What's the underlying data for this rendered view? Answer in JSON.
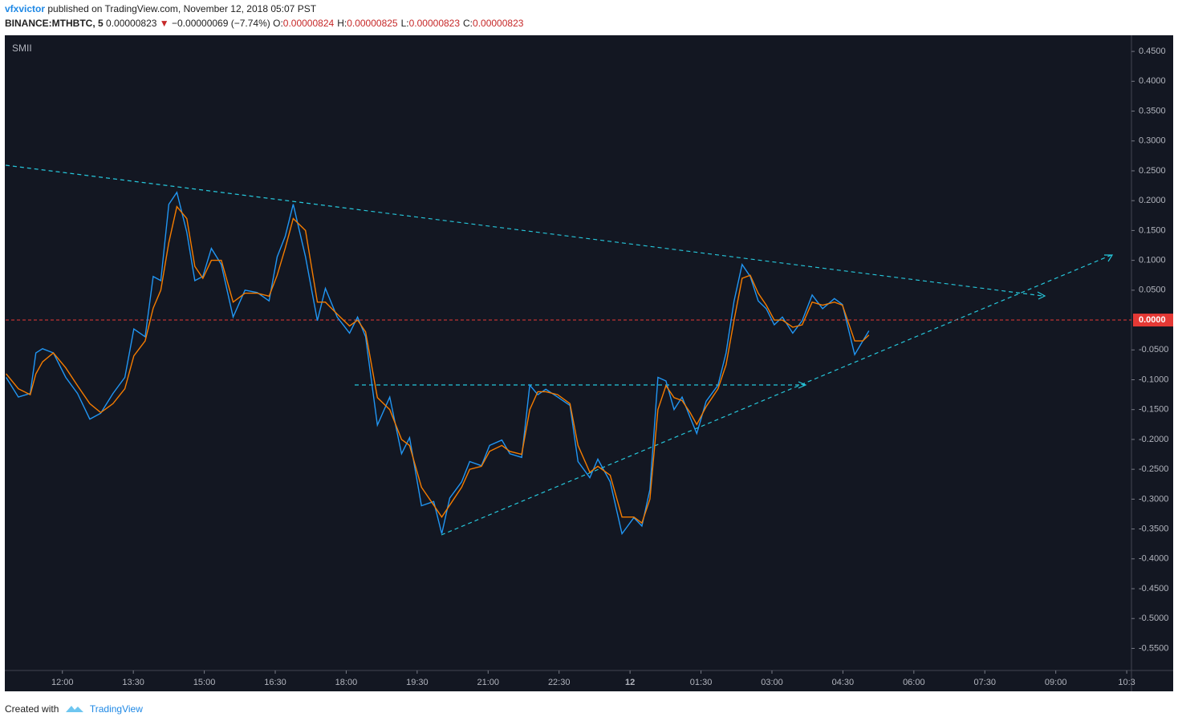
{
  "chart_data": {
    "type": "line",
    "author": "vfxvictor",
    "published": "published on TradingView.com, November 12, 2018 05:07 PST",
    "symbol": "BINANCE:MTHBTC, 5",
    "last": "0.00000823",
    "direction": "▼",
    "change": "−0.00000069 (−7.74%)",
    "ohlc": [
      {
        "label": "O:",
        "value": "0.00000824"
      },
      {
        "label": "H:",
        "value": "0.00000825"
      },
      {
        "label": "L:",
        "value": "0.00000823"
      },
      {
        "label": "C:",
        "value": "0.00000823"
      }
    ],
    "indicator": "SMII",
    "footer": {
      "created": "Created with",
      "brand": "TradingView"
    },
    "x": [
      10.81,
      11.07,
      11.32,
      11.44,
      11.58,
      11.81,
      12.07,
      12.32,
      12.58,
      12.81,
      13.07,
      13.32,
      13.51,
      13.75,
      13.92,
      14.08,
      14.25,
      14.42,
      14.63,
      14.8,
      14.97,
      15.15,
      15.36,
      15.61,
      15.86,
      16.12,
      16.37,
      16.54,
      16.71,
      16.88,
      17.14,
      17.39,
      17.56,
      17.81,
      18.07,
      18.24,
      18.41,
      18.66,
      18.92,
      19.17,
      19.34,
      19.59,
      19.85,
      20.02,
      20.19,
      20.44,
      20.61,
      20.86,
      21.03,
      21.29,
      21.46,
      21.71,
      21.88,
      22.05,
      22.22,
      22.47,
      22.73,
      22.9,
      23.15,
      23.32,
      23.58,
      23.83,
      24.08,
      24.25,
      24.42,
      24.59,
      24.76,
      24.93,
      25.1,
      25.27,
      25.41,
      25.61,
      25.86,
      26.03,
      26.2,
      26.37,
      26.54,
      26.71,
      26.88,
      27.05,
      27.22,
      27.44,
      27.64,
      27.85,
      28.07,
      28.32,
      28.49,
      28.75,
      28.92,
      29.05
    ],
    "series": [
      {
        "name": "SMII",
        "color": "#2196f3",
        "values": [
          -0.096,
          -0.129,
          -0.123,
          -0.055,
          -0.048,
          -0.055,
          -0.096,
          -0.123,
          -0.166,
          -0.156,
          -0.123,
          -0.096,
          -0.015,
          -0.028,
          0.073,
          0.066,
          0.194,
          0.214,
          0.147,
          0.066,
          0.073,
          0.12,
          0.093,
          0.005,
          0.05,
          0.046,
          0.032,
          0.106,
          0.14,
          0.194,
          0.106,
          -0.001,
          0.053,
          0.005,
          -0.022,
          0.005,
          -0.028,
          -0.176,
          -0.129,
          -0.224,
          -0.197,
          -0.311,
          -0.304,
          -0.358,
          -0.298,
          -0.271,
          -0.237,
          -0.244,
          -0.21,
          -0.201,
          -0.224,
          -0.23,
          -0.109,
          -0.125,
          -0.116,
          -0.129,
          -0.143,
          -0.237,
          -0.264,
          -0.233,
          -0.271,
          -0.358,
          -0.331,
          -0.345,
          -0.284,
          -0.096,
          -0.102,
          -0.15,
          -0.129,
          -0.163,
          -0.19,
          -0.136,
          -0.109,
          -0.055,
          0.032,
          0.093,
          0.073,
          0.032,
          0.019,
          -0.008,
          0.005,
          -0.022,
          -0.001,
          0.042,
          0.019,
          0.036,
          0.026,
          -0.058,
          -0.035,
          -0.018
        ]
      },
      {
        "color": "#f57c00",
        "values": [
          -0.09,
          -0.115,
          -0.125,
          -0.09,
          -0.07,
          -0.055,
          -0.08,
          -0.11,
          -0.14,
          -0.155,
          -0.14,
          -0.115,
          -0.06,
          -0.035,
          0.02,
          0.05,
          0.13,
          0.19,
          0.17,
          0.09,
          0.07,
          0.1,
          0.1,
          0.03,
          0.045,
          0.045,
          0.04,
          0.075,
          0.12,
          0.17,
          0.15,
          0.03,
          0.03,
          0.01,
          -0.01,
          0.0,
          -0.02,
          -0.13,
          -0.15,
          -0.2,
          -0.21,
          -0.28,
          -0.31,
          -0.33,
          -0.31,
          -0.28,
          -0.25,
          -0.245,
          -0.22,
          -0.21,
          -0.22,
          -0.225,
          -0.15,
          -0.12,
          -0.12,
          -0.125,
          -0.14,
          -0.21,
          -0.255,
          -0.245,
          -0.26,
          -0.33,
          -0.33,
          -0.34,
          -0.3,
          -0.15,
          -0.11,
          -0.13,
          -0.135,
          -0.155,
          -0.175,
          -0.145,
          -0.115,
          -0.075,
          0.0,
          0.07,
          0.075,
          0.045,
          0.025,
          0.0,
          0.0,
          -0.012,
          -0.008,
          0.03,
          0.025,
          0.03,
          0.025,
          -0.035,
          -0.035,
          -0.025
        ]
      }
    ],
    "xlim": [
      10.8,
      34.6
    ],
    "xticks": [
      {
        "value": 12,
        "label": "12:00"
      },
      {
        "value": 13.5,
        "label": "13:30"
      },
      {
        "value": 15,
        "label": "15:00"
      },
      {
        "value": 16.5,
        "label": "16:30"
      },
      {
        "value": 18,
        "label": "18:00"
      },
      {
        "value": 19.5,
        "label": "19:30"
      },
      {
        "value": 21,
        "label": "21:00"
      },
      {
        "value": 22.5,
        "label": "22:30"
      },
      {
        "value": 24,
        "label": "12"
      },
      {
        "value": 25.5,
        "label": "01:30"
      },
      {
        "value": 27,
        "label": "03:00"
      },
      {
        "value": 28.5,
        "label": "04:30"
      },
      {
        "value": 30,
        "label": "06:00"
      },
      {
        "value": 31.5,
        "label": "07:30"
      },
      {
        "value": 33,
        "label": "09:00"
      },
      {
        "value": 34.5,
        "label": "10:3"
      }
    ],
    "ylim": [
      -0.587,
      0.477
    ],
    "yticks": [
      {
        "value": 0.45,
        "label": "0.4500"
      },
      {
        "value": 0.4,
        "label": "0.4000"
      },
      {
        "value": 0.35,
        "label": "0.3500"
      },
      {
        "value": 0.3,
        "label": "0.3000"
      },
      {
        "value": 0.25,
        "label": "0.2500"
      },
      {
        "value": 0.2,
        "label": "0.2000"
      },
      {
        "value": 0.15,
        "label": "0.1500"
      },
      {
        "value": 0.1,
        "label": "0.1000"
      },
      {
        "value": 0.05,
        "label": "0.0500"
      },
      {
        "value": -0.05,
        "label": "-0.0500"
      },
      {
        "value": -0.1,
        "label": "-0.1000"
      },
      {
        "value": -0.15,
        "label": "-0.1500"
      },
      {
        "value": -0.2,
        "label": "-0.2000"
      },
      {
        "value": -0.25,
        "label": "-0.2500"
      },
      {
        "value": -0.3,
        "label": "-0.3000"
      },
      {
        "value": -0.35,
        "label": "-0.3500"
      },
      {
        "value": -0.4,
        "label": "-0.4000"
      },
      {
        "value": -0.45,
        "label": "-0.4500"
      },
      {
        "value": -0.5,
        "label": "-0.5000"
      },
      {
        "value": -0.55,
        "label": "-0.5500"
      }
    ],
    "reference_line": {
      "value": 0,
      "label": "0.0000",
      "color": "#e53935"
    }
  }
}
